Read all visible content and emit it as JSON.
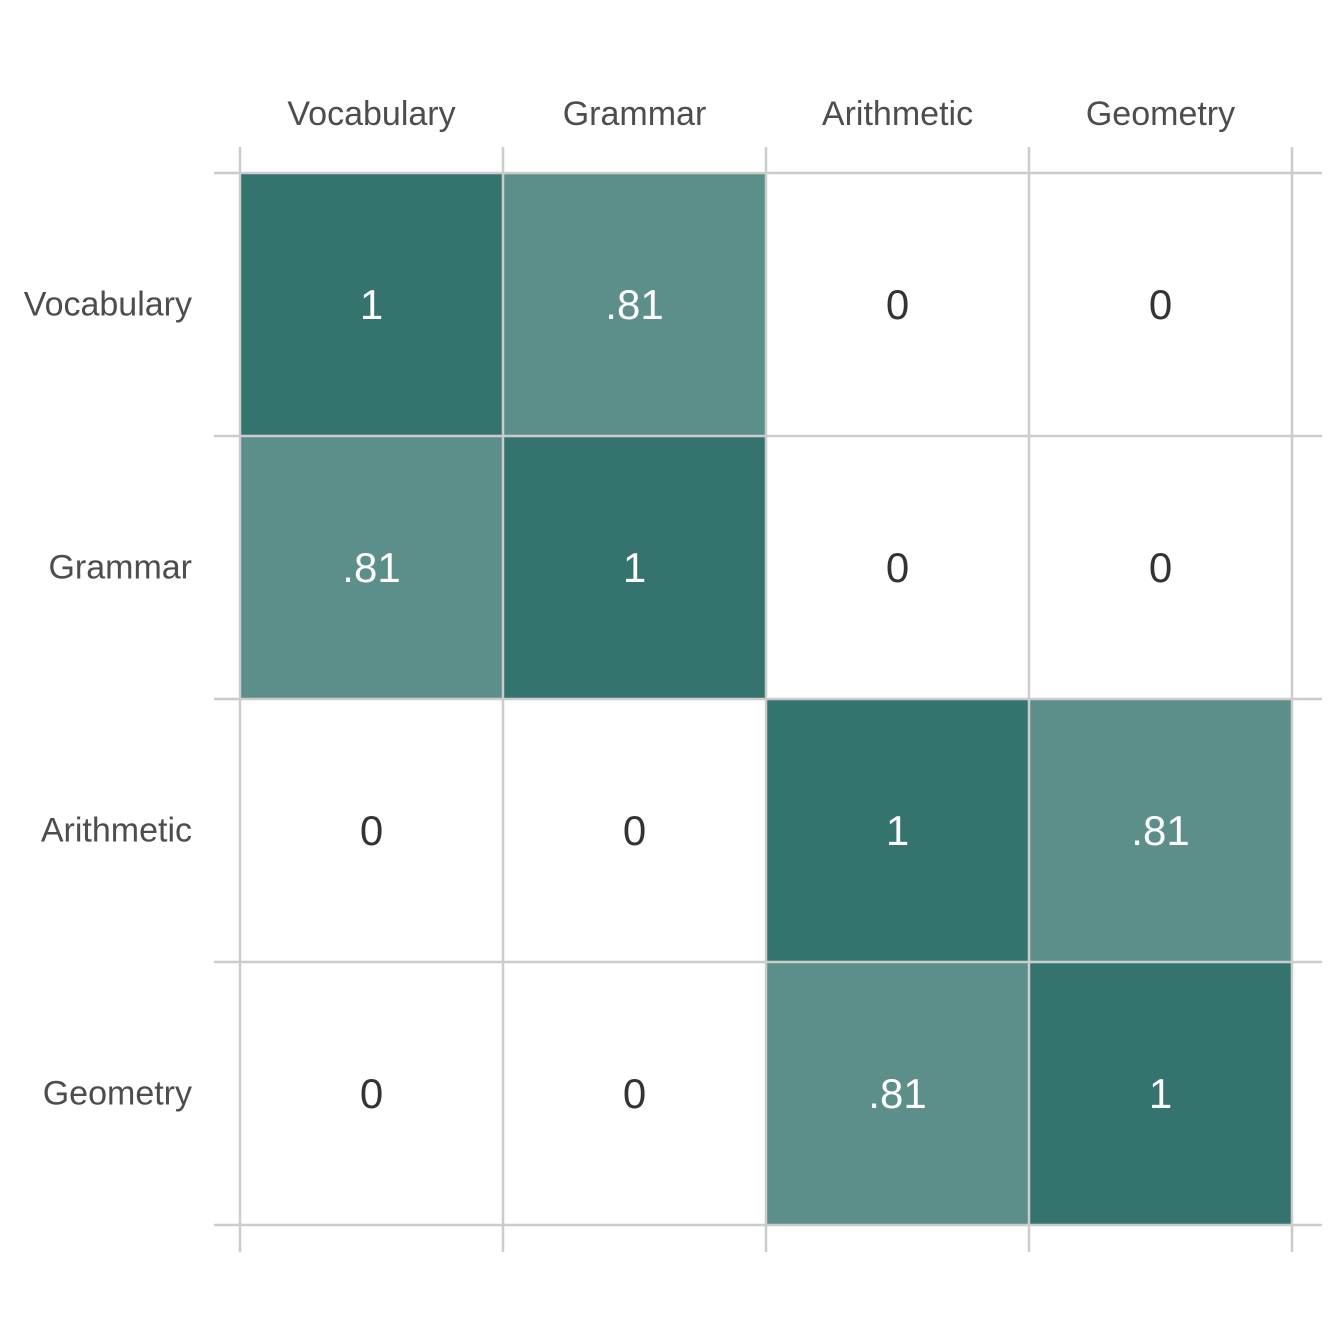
{
  "chart_data": {
    "type": "heatmap",
    "title": "",
    "xlabel": "",
    "ylabel": "",
    "x_categories": [
      "Vocabulary",
      "Grammar",
      "Arithmetic",
      "Geometry"
    ],
    "y_categories": [
      "Vocabulary",
      "Grammar",
      "Arithmetic",
      "Geometry"
    ],
    "values": [
      [
        1,
        0.81,
        0,
        0
      ],
      [
        0.81,
        1,
        0,
        0
      ],
      [
        0,
        0,
        1,
        0.81
      ],
      [
        0,
        0,
        0.81,
        1
      ]
    ],
    "labels": [
      [
        "1",
        ".81",
        "0",
        "0"
      ],
      [
        ".81",
        "1",
        "0",
        "0"
      ],
      [
        "0",
        "0",
        "1",
        ".81"
      ],
      [
        "0",
        "0",
        ".81",
        "1"
      ]
    ],
    "x_axis_position": "top",
    "grid": true,
    "legend": "none"
  },
  "colors": {
    "high": "#35736e",
    "mid": "#5d8f8a",
    "low": "#ffffff",
    "grid": "#cccccc",
    "text_on_dark": "#ffffff",
    "text_on_light": "#333333",
    "axis_text": "#4d4d4d"
  }
}
